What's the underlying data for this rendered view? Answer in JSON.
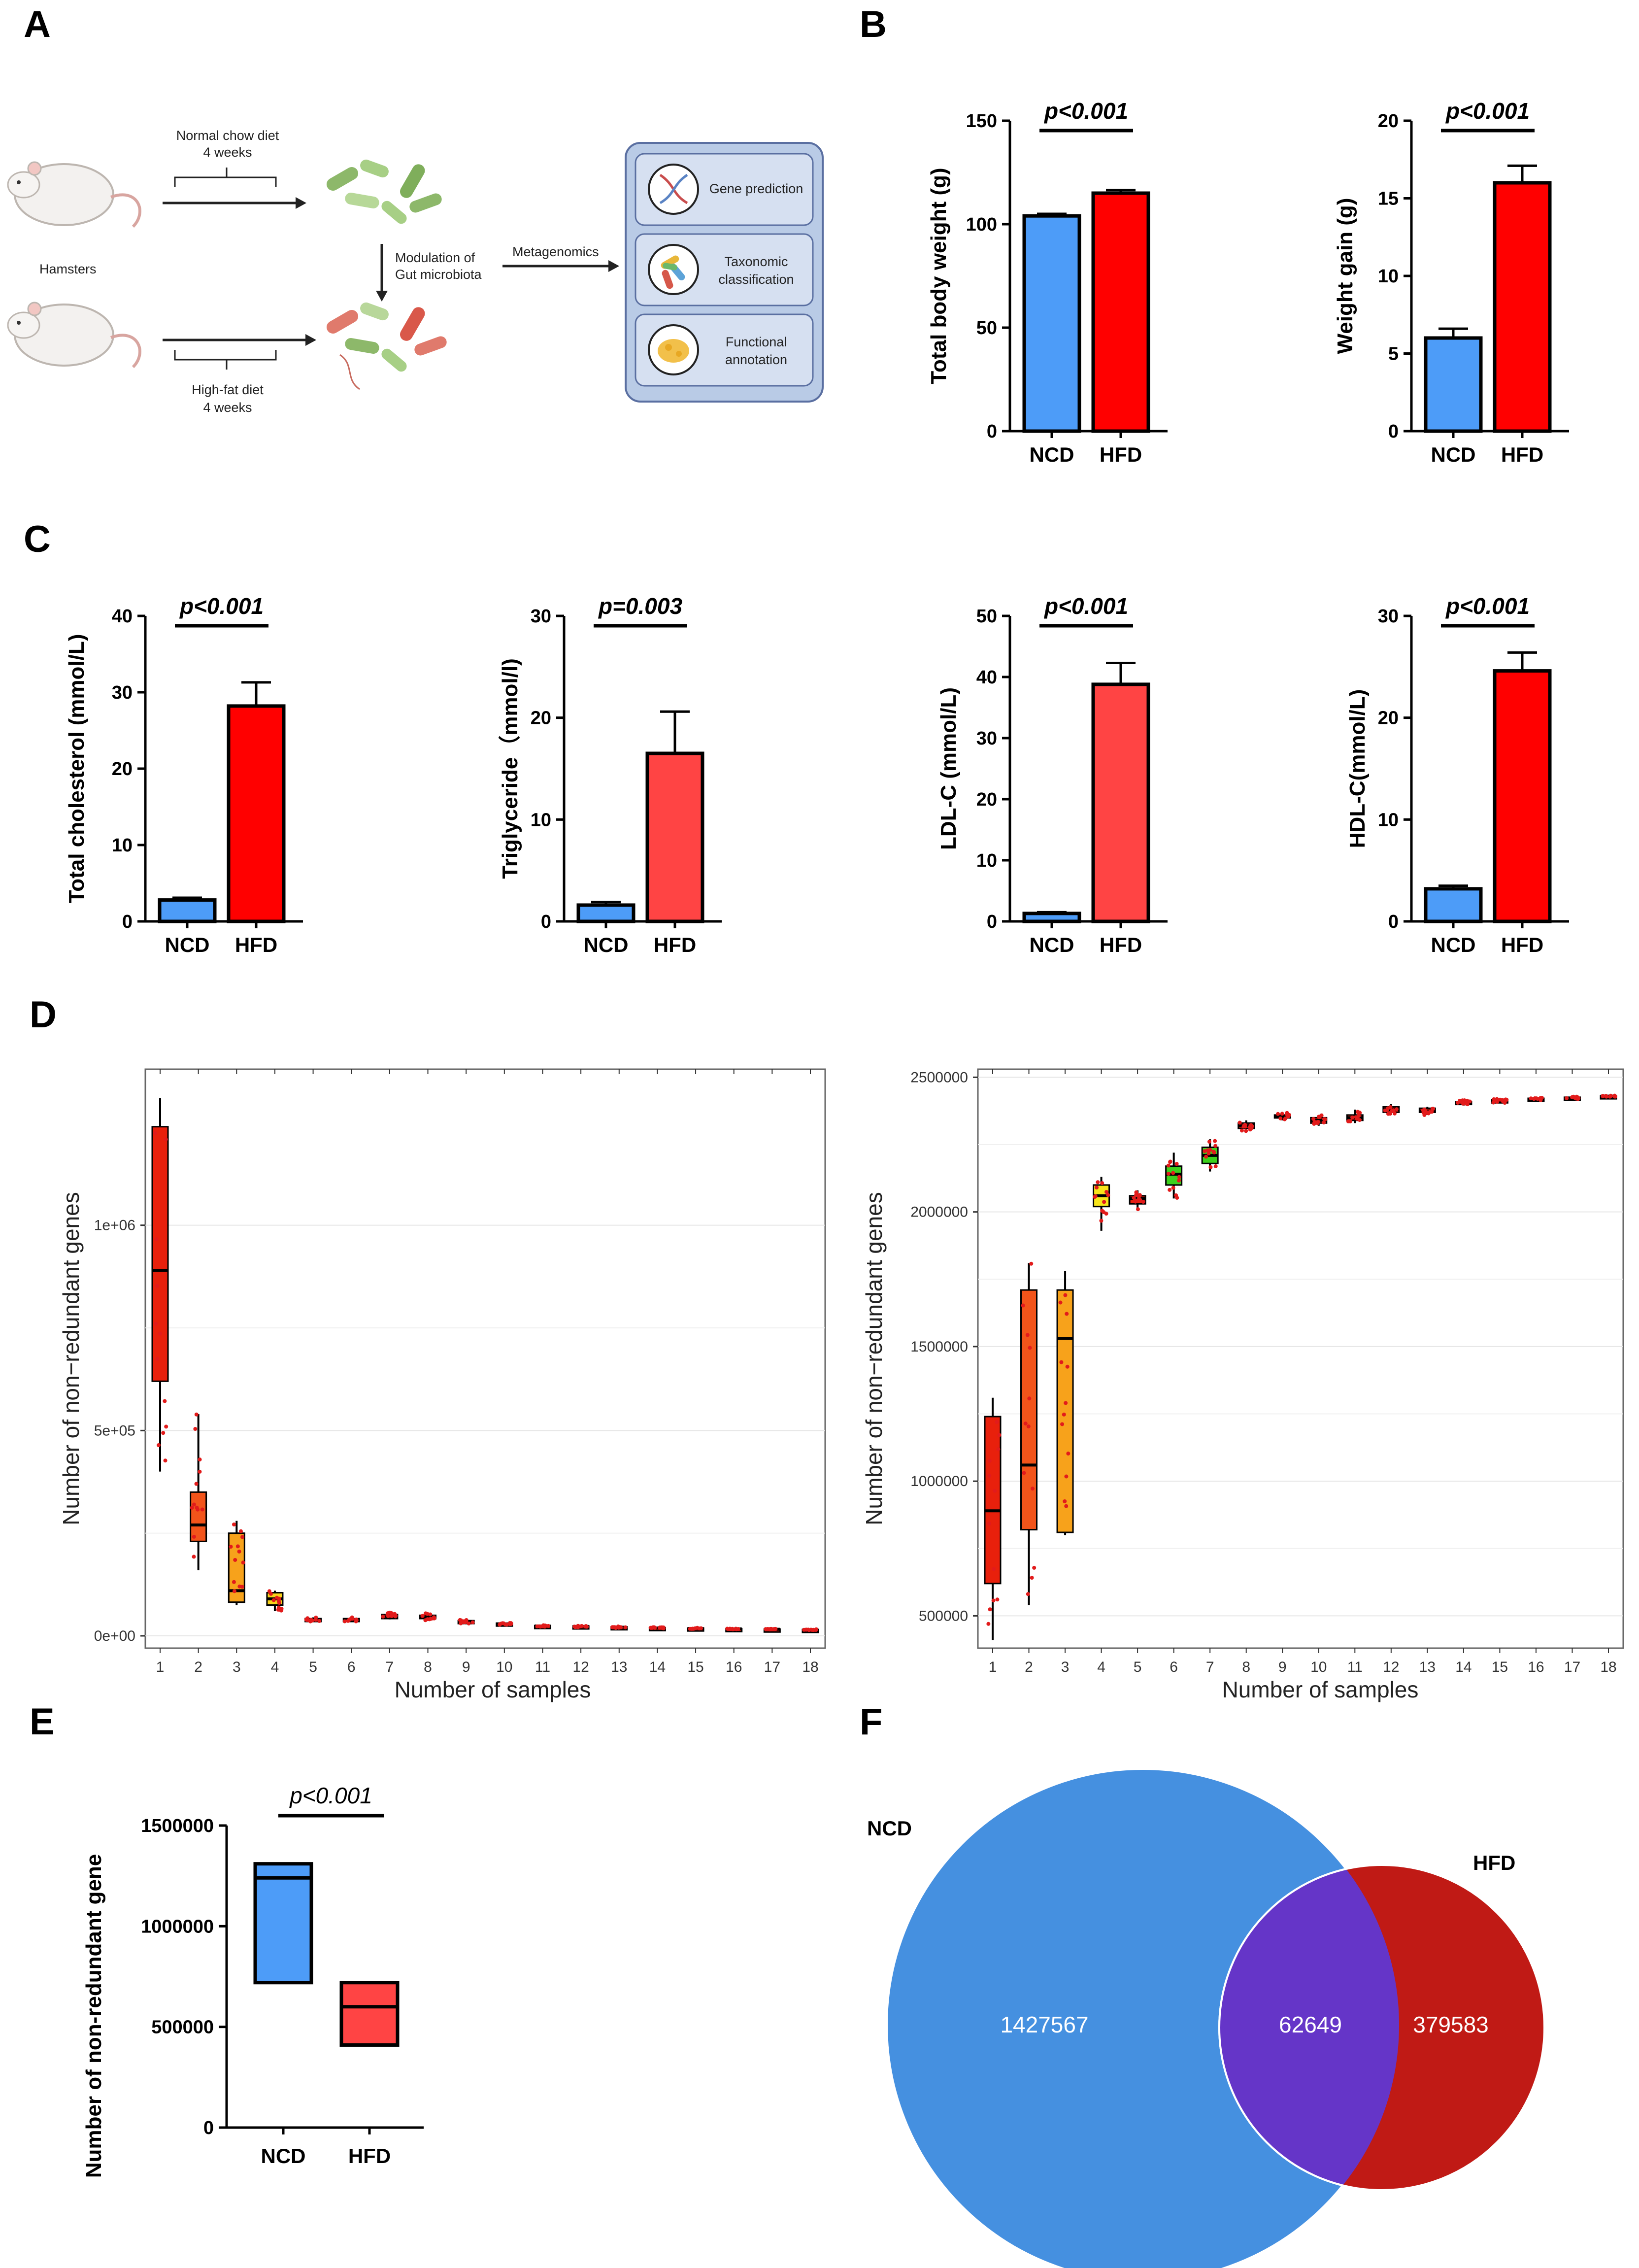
{
  "panel_labels": [
    "A",
    "B",
    "C",
    "D",
    "E",
    "F"
  ],
  "schematic": {
    "top_arrow_line1": "Normal chow diet",
    "top_arrow_line2": "4 weeks",
    "bottom_arrow_line1": "High-fat diet",
    "bottom_arrow_line2": "4 weeks",
    "animal_label": "Hamsters",
    "modulation_line1": "Modulation of",
    "modulation_line2": "Gut microbiota",
    "metagenomics_label": "Metagenomics",
    "box_items": [
      {
        "line1": "Gene prediction",
        "line2": ""
      },
      {
        "line1": "Taxonomic",
        "line2": "classification"
      },
      {
        "line1": "Functional",
        "line2": "annotation"
      }
    ],
    "colors": {
      "box_fill": "#b9cbe6",
      "box_stroke": "#5a6fa1",
      "item_fill": "#d6e0f1"
    }
  },
  "chart_data": [
    {
      "id": "B1",
      "type": "bar",
      "categories": [
        "NCD",
        "HFD"
      ],
      "values": [
        104,
        115
      ],
      "errors": [
        1,
        1.5
      ],
      "ylabel": "Total body weight (g)",
      "ylim": [
        0,
        150
      ],
      "ticks": [
        0,
        50,
        100,
        150
      ],
      "annotation": "p<0.001",
      "colors": [
        "#4d9cf8",
        "#ff0000"
      ]
    },
    {
      "id": "B2",
      "type": "bar",
      "categories": [
        "NCD",
        "HFD"
      ],
      "values": [
        6,
        16
      ],
      "errors": [
        0.6,
        1.1
      ],
      "ylabel": "Weight gain (g)",
      "ylim": [
        0,
        20
      ],
      "ticks": [
        0,
        5,
        10,
        15,
        20
      ],
      "annotation": "p<0.001",
      "colors": [
        "#4d9cf8",
        "#ff0000"
      ]
    },
    {
      "id": "C1",
      "type": "bar",
      "categories": [
        "NCD",
        "HFD"
      ],
      "values": [
        2.8,
        28.2
      ],
      "errors": [
        0.3,
        3.1
      ],
      "ylabel": "Total cholesterol (mmol/L)",
      "ylim": [
        0,
        40
      ],
      "ticks": [
        0,
        10,
        20,
        30,
        40
      ],
      "annotation": "p<0.001",
      "colors": [
        "#4d9cf8",
        "#ff0000"
      ]
    },
    {
      "id": "C2",
      "type": "bar",
      "categories": [
        "NCD",
        "HFD"
      ],
      "values": [
        1.6,
        16.5
      ],
      "errors": [
        0.3,
        4.1
      ],
      "ylabel": "Triglyceride（mmol/l)",
      "ylim": [
        0,
        30
      ],
      "ticks": [
        0,
        10,
        20,
        30
      ],
      "annotation": "p=0.003",
      "colors": [
        "#4d9cf8",
        "#ff4444"
      ]
    },
    {
      "id": "C3",
      "type": "bar",
      "categories": [
        "NCD",
        "HFD"
      ],
      "values": [
        1.3,
        38.8
      ],
      "errors": [
        0.2,
        3.5
      ],
      "ylabel": "LDL-C (mmol/L)",
      "ylim": [
        0,
        50
      ],
      "ticks": [
        0,
        10,
        20,
        30,
        40,
        50
      ],
      "annotation": "p<0.001",
      "colors": [
        "#4d9cf8",
        "#ff4444"
      ]
    },
    {
      "id": "C4",
      "type": "bar",
      "categories": [
        "NCD",
        "HFD"
      ],
      "values": [
        3.2,
        24.6
      ],
      "errors": [
        0.3,
        1.8
      ],
      "ylabel": "HDL-C(mmol/L)",
      "ylim": [
        0,
        30
      ],
      "ticks": [
        0,
        10,
        20,
        30
      ],
      "annotation": "p<0.001",
      "colors": [
        "#4d9cf8",
        "#ff0000"
      ]
    },
    {
      "id": "D1",
      "type": "box",
      "title": "",
      "xlabel": "Number of samples",
      "ylabel": "Number of non−redundant genes",
      "ylim": [
        -30000,
        1380000
      ],
      "ticks": [
        0,
        500000,
        1000000
      ],
      "tick_labels": [
        "0e+00",
        "5e+05",
        "1e+06"
      ],
      "categories": [
        "1",
        "2",
        "3",
        "4",
        "5",
        "6",
        "7",
        "8",
        "9",
        "10",
        "11",
        "12",
        "13",
        "14",
        "15",
        "16",
        "17",
        "18"
      ],
      "boxes": [
        {
          "min": 400000,
          "q1": 620000,
          "median": 890000,
          "q3": 1240000,
          "max": 1310000,
          "color": "#e8200c"
        },
        {
          "min": 160000,
          "q1": 230000,
          "median": 270000,
          "q3": 350000,
          "max": 540000,
          "color": "#f2541a"
        },
        {
          "min": 75000,
          "q1": 82000,
          "median": 110000,
          "q3": 250000,
          "max": 280000,
          "color": "#f7a21b"
        },
        {
          "min": 60000,
          "q1": 75000,
          "median": 90000,
          "q3": 105000,
          "max": 110000,
          "color": "#f7d21b"
        },
        {
          "min": 35000,
          "q1": 38000,
          "median": 40000,
          "q3": 42000,
          "max": 45000,
          "color": "#e8200c"
        },
        {
          "min": 35000,
          "q1": 38000,
          "median": 40000,
          "q3": 42000,
          "max": 45000,
          "color": "#e8200c"
        },
        {
          "min": 40000,
          "q1": 42000,
          "median": 48000,
          "q3": 52000,
          "max": 58000,
          "color": "#e8200c"
        },
        {
          "min": 38000,
          "q1": 42000,
          "median": 46000,
          "q3": 50000,
          "max": 55000,
          "color": "#e8200c"
        },
        {
          "min": 30000,
          "q1": 32000,
          "median": 35000,
          "q3": 37000,
          "max": 40000,
          "color": "#e8200c"
        },
        {
          "min": 27000,
          "q1": 28000,
          "median": 29000,
          "q3": 31000,
          "max": 32000,
          "color": "#e8200c"
        },
        {
          "min": 22000,
          "q1": 23000,
          "median": 24000,
          "q3": 25000,
          "max": 26000,
          "color": "#e8200c"
        },
        {
          "min": 21000,
          "q1": 22000,
          "median": 23000,
          "q3": 24000,
          "max": 25000,
          "color": "#e8200c"
        },
        {
          "min": 19000,
          "q1": 20000,
          "median": 21000,
          "q3": 22000,
          "max": 23000,
          "color": "#e8200c"
        },
        {
          "min": 18000,
          "q1": 18500,
          "median": 19000,
          "q3": 20000,
          "max": 21000,
          "color": "#e8200c"
        },
        {
          "min": 17000,
          "q1": 17500,
          "median": 18000,
          "q3": 19000,
          "max": 20000,
          "color": "#e8200c"
        },
        {
          "min": 16000,
          "q1": 16500,
          "median": 17000,
          "q3": 17500,
          "max": 18000,
          "color": "#e8200c"
        },
        {
          "min": 15000,
          "q1": 15500,
          "median": 16000,
          "q3": 16500,
          "max": 17000,
          "color": "#e8200c"
        },
        {
          "min": 14000,
          "q1": 14500,
          "median": 15000,
          "q3": 15500,
          "max": 16000,
          "color": "#111111"
        }
      ]
    },
    {
      "id": "D2",
      "type": "box",
      "title": "",
      "xlabel": "Number of samples",
      "ylabel": "Number of non−redundant genes",
      "ylim": [
        380000,
        2530000
      ],
      "ticks": [
        500000,
        1000000,
        1500000,
        2000000,
        2500000
      ],
      "tick_labels": [
        "500000",
        "1000000",
        "1500000",
        "2000000",
        "2500000"
      ],
      "categories": [
        "1",
        "2",
        "3",
        "4",
        "5",
        "6",
        "7",
        "8",
        "9",
        "10",
        "11",
        "12",
        "13",
        "14",
        "15",
        "16",
        "17",
        "18"
      ],
      "boxes": [
        {
          "min": 410000,
          "q1": 620000,
          "median": 890000,
          "q3": 1240000,
          "max": 1310000,
          "color": "#e8200c"
        },
        {
          "min": 540000,
          "q1": 820000,
          "median": 1060000,
          "q3": 1710000,
          "max": 1810000,
          "color": "#f2541a"
        },
        {
          "min": 800000,
          "q1": 810000,
          "median": 1530000,
          "q3": 1710000,
          "max": 1780000,
          "color": "#f7a21b"
        },
        {
          "min": 1930000,
          "q1": 2020000,
          "median": 2060000,
          "q3": 2100000,
          "max": 2130000,
          "color": "#f7e51b"
        },
        {
          "min": 2010000,
          "q1": 2030000,
          "median": 2050000,
          "q3": 2060000,
          "max": 2080000,
          "color": "#e8200c"
        },
        {
          "min": 2050000,
          "q1": 2100000,
          "median": 2140000,
          "q3": 2170000,
          "max": 2220000,
          "color": "#3cd11c"
        },
        {
          "min": 2150000,
          "q1": 2180000,
          "median": 2210000,
          "q3": 2240000,
          "max": 2270000,
          "color": "#3cd11c"
        },
        {
          "min": 2300000,
          "q1": 2310000,
          "median": 2320000,
          "q3": 2330000,
          "max": 2340000,
          "color": "#e8200c"
        },
        {
          "min": 2340000,
          "q1": 2350000,
          "median": 2355000,
          "q3": 2360000,
          "max": 2370000,
          "color": "#e8200c"
        },
        {
          "min": 2320000,
          "q1": 2330000,
          "median": 2340000,
          "q3": 2350000,
          "max": 2360000,
          "color": "#e8200c"
        },
        {
          "min": 2330000,
          "q1": 2340000,
          "median": 2350000,
          "q3": 2360000,
          "max": 2380000,
          "color": "#e8200c"
        },
        {
          "min": 2360000,
          "q1": 2370000,
          "median": 2380000,
          "q3": 2390000,
          "max": 2400000,
          "color": "#e8200c"
        },
        {
          "min": 2360000,
          "q1": 2370000,
          "median": 2375000,
          "q3": 2385000,
          "max": 2390000,
          "color": "#e8200c"
        },
        {
          "min": 2395000,
          "q1": 2400000,
          "median": 2405000,
          "q3": 2410000,
          "max": 2415000,
          "color": "#e8200c"
        },
        {
          "min": 2405000,
          "q1": 2410000,
          "median": 2412000,
          "q3": 2416000,
          "max": 2420000,
          "color": "#e8200c"
        },
        {
          "min": 2412000,
          "q1": 2416000,
          "median": 2418000,
          "q3": 2422000,
          "max": 2426000,
          "color": "#e8200c"
        },
        {
          "min": 2418000,
          "q1": 2421000,
          "median": 2423000,
          "q3": 2426000,
          "max": 2430000,
          "color": "#e8200c"
        },
        {
          "min": 2428000,
          "q1": 2429000,
          "median": 2430000,
          "q3": 2431000,
          "max": 2432000,
          "color": "#111111"
        }
      ]
    },
    {
      "id": "E",
      "type": "floating_bar",
      "categories": [
        "NCD",
        "HFD"
      ],
      "ylabel": "Number of non-redundant gene",
      "ylim": [
        0,
        1500000
      ],
      "ticks": [
        0,
        500000,
        1000000,
        1500000
      ],
      "tick_labels": [
        "0",
        "500000",
        "1000000",
        "1500000"
      ],
      "boxes": [
        {
          "low": 720000,
          "mid": 1240000,
          "high": 1310000
        },
        {
          "low": 410000,
          "mid": 600000,
          "high": 720000
        }
      ],
      "annotation": "p<0.001",
      "colors": [
        "#4d9cf8",
        "#ff4444"
      ]
    },
    {
      "id": "F",
      "type": "venn",
      "sets": [
        "NCD",
        "HFD"
      ],
      "only_a": 1427567,
      "overlap": 62649,
      "only_b": 379583,
      "only_a_label": "1427567",
      "overlap_label": "62649",
      "only_b_label": "379583",
      "colors": {
        "a": "#4590e0",
        "b": "#c01a15",
        "overlap": "#6535c8"
      }
    }
  ]
}
